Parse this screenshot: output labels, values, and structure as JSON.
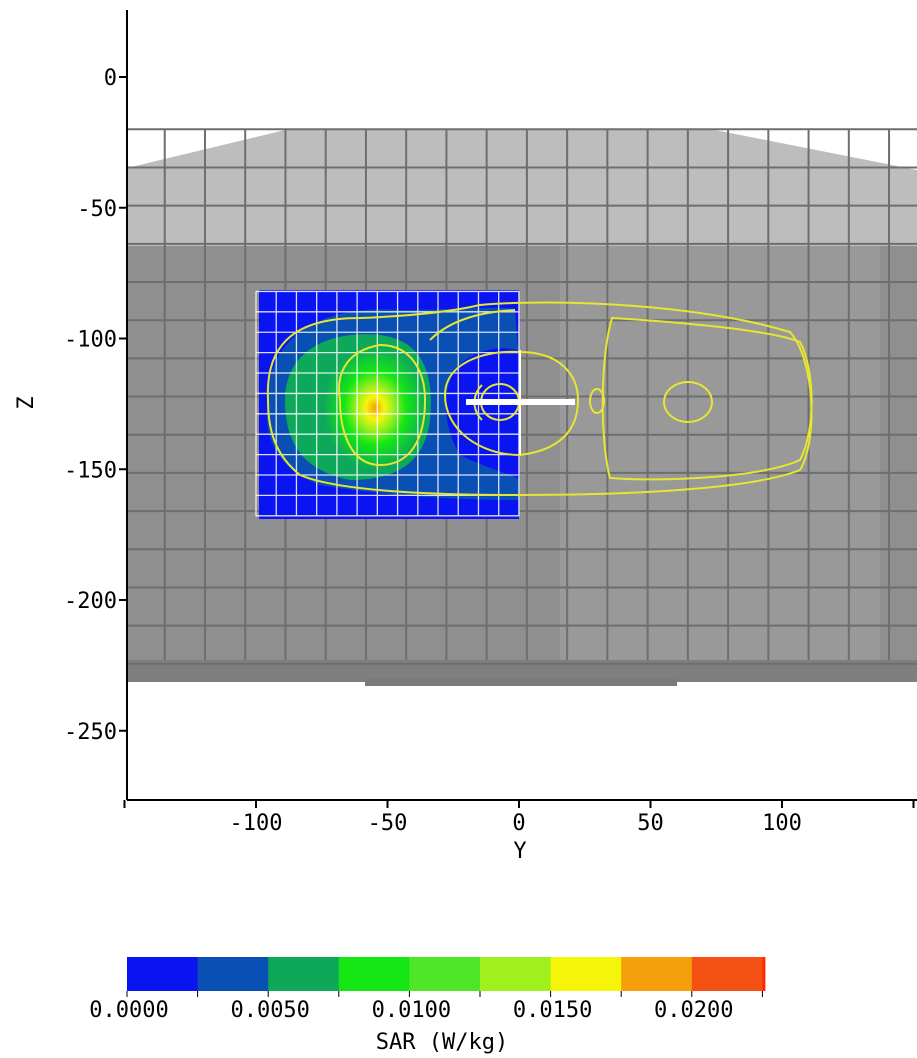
{
  "chart_data": {
    "type": "heatmap",
    "title": "",
    "xlabel": "Y",
    "ylabel": "Z",
    "xlim": [
      -150,
      150
    ],
    "ylim": [
      -275,
      25
    ],
    "x_ticks": [
      -100,
      -50,
      0,
      50,
      100
    ],
    "y_ticks": [
      0,
      -50,
      -100,
      -150,
      -200,
      -250
    ],
    "x_tick_labels": [
      "-100",
      "-50",
      "0",
      "50",
      "100"
    ],
    "y_tick_labels": [
      "0",
      "-50",
      "-100",
      "-150",
      "-200",
      "-250"
    ],
    "grid": true,
    "phantom_cells": [
      {
        "y": [
          -150,
          150
        ],
        "z": [
          -30,
          -65
        ],
        "color": "#b4b4b4"
      },
      {
        "y": [
          -150,
          150
        ],
        "z": [
          -65,
          -230
        ],
        "color": "#8c8c8c"
      }
    ],
    "sar_region": {
      "y": [
        -100,
        0
      ],
      "z": [
        -82,
        -168
      ]
    },
    "sar_peak": {
      "y": -57,
      "z": -128
    },
    "colorbar": {
      "label": "SAR (W/kg)",
      "tick_labels": [
        "0.0000",
        "0.0050",
        "0.0100",
        "0.0150",
        "0.0200"
      ],
      "levels": [
        0.0,
        0.0025,
        0.005,
        0.0075,
        0.01,
        0.0125,
        0.015,
        0.0175,
        0.02,
        0.0225
      ],
      "colors": [
        "#0a14f0",
        "#0a50b4",
        "#0ea85a",
        "#14e614",
        "#50e628",
        "#a0f01e",
        "#f5f50a",
        "#f5a00a",
        "#f55014"
      ]
    },
    "outline_color": "#e6e632",
    "feed_point": {
      "y": 0,
      "z": -123
    }
  }
}
